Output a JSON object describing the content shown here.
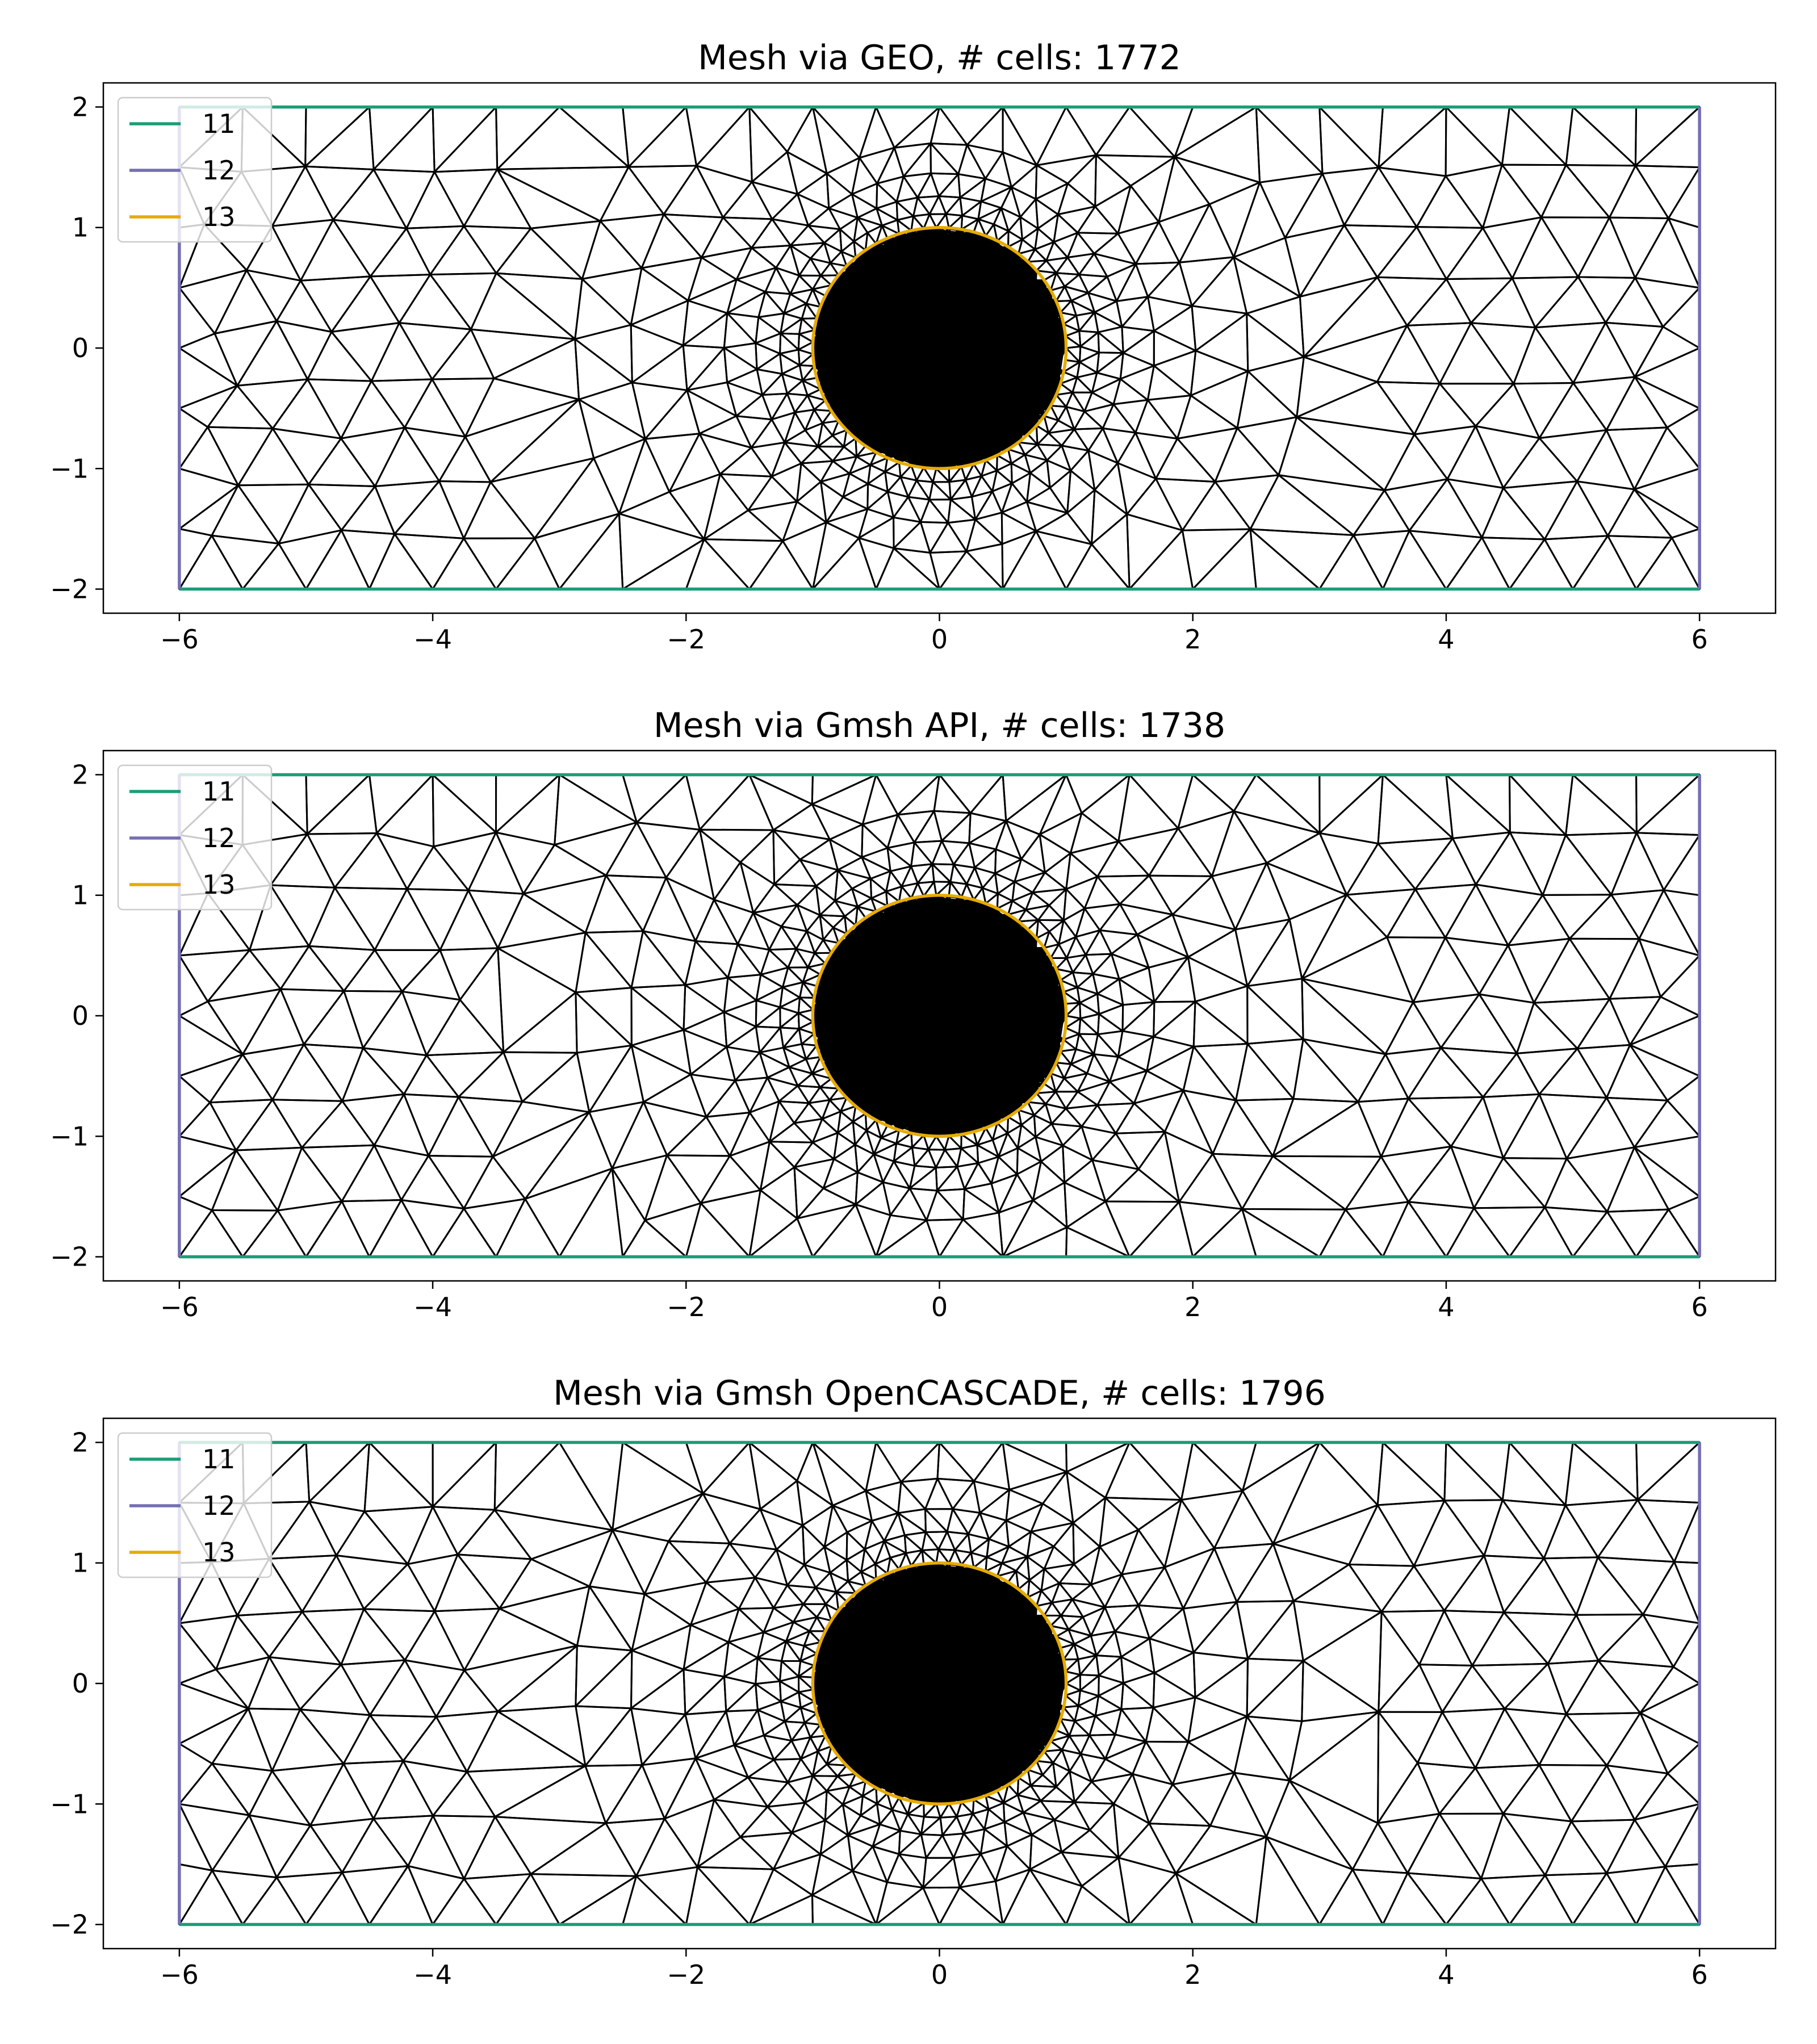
{
  "chart_data": [
    {
      "type": "mesh",
      "title": "Mesh via GEO, # cells: 1772",
      "cells": 1772,
      "xlim": [
        -6.6,
        6.6
      ],
      "ylim": [
        -2.2,
        2.2
      ],
      "xticks": [
        -6,
        -4,
        -2,
        0,
        2,
        4,
        6
      ],
      "yticks": [
        -2,
        -1,
        0,
        1,
        2
      ],
      "domain": {
        "xmin": -6,
        "xmax": 6,
        "ymin": -2,
        "ymax": 2
      },
      "circle": {
        "cx": 0,
        "cy": 0,
        "r": 1
      },
      "legend": [
        {
          "label": "11",
          "color": "#1b9e77"
        },
        {
          "label": "12",
          "color": "#7570b3"
        },
        {
          "label": "13",
          "color": "#e6ab02"
        }
      ],
      "legend_position": "top-left"
    },
    {
      "type": "mesh",
      "title": "Mesh via Gmsh API, # cells: 1738",
      "cells": 1738,
      "xlim": [
        -6.6,
        6.6
      ],
      "ylim": [
        -2.2,
        2.2
      ],
      "xticks": [
        -6,
        -4,
        -2,
        0,
        2,
        4,
        6
      ],
      "yticks": [
        -2,
        -1,
        0,
        1,
        2
      ],
      "domain": {
        "xmin": -6,
        "xmax": 6,
        "ymin": -2,
        "ymax": 2
      },
      "circle": {
        "cx": 0,
        "cy": 0,
        "r": 1
      },
      "legend": [
        {
          "label": "11",
          "color": "#1b9e77"
        },
        {
          "label": "12",
          "color": "#7570b3"
        },
        {
          "label": "13",
          "color": "#e6ab02"
        }
      ],
      "legend_position": "top-left"
    },
    {
      "type": "mesh",
      "title": "Mesh via Gmsh OpenCASCADE, # cells: 1796",
      "cells": 1796,
      "xlim": [
        -6.6,
        6.6
      ],
      "ylim": [
        -2.2,
        2.2
      ],
      "xticks": [
        -6,
        -4,
        -2,
        0,
        2,
        4,
        6
      ],
      "yticks": [
        -2,
        -1,
        0,
        1,
        2
      ],
      "domain": {
        "xmin": -6,
        "xmax": 6,
        "ymin": -2,
        "ymax": 2
      },
      "circle": {
        "cx": 0,
        "cy": 0,
        "r": 1
      },
      "legend": [
        {
          "label": "11",
          "color": "#1b9e77"
        },
        {
          "label": "12",
          "color": "#7570b3"
        },
        {
          "label": "13",
          "color": "#e6ab02"
        }
      ],
      "legend_position": "top-left"
    }
  ]
}
